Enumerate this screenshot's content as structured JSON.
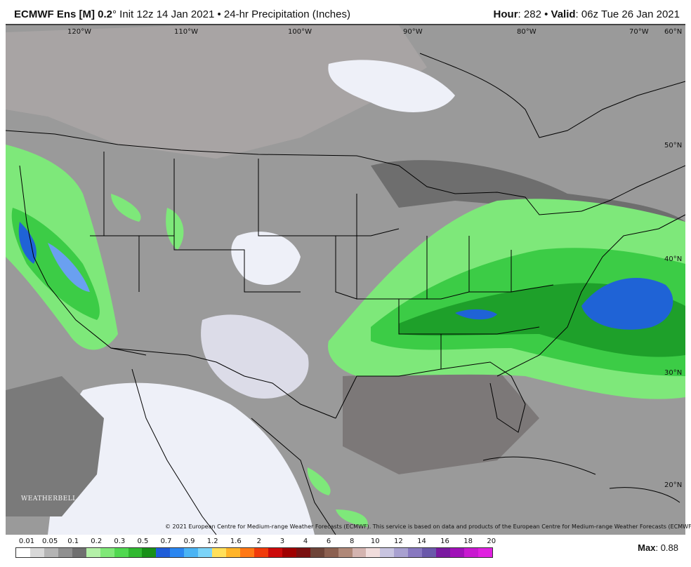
{
  "header": {
    "model": "ECMWF Ens [M] 0.2",
    "degree": "°",
    "init": " Init 12z 14 Jan 2021",
    "separator": " • ",
    "product": "24-hr Precipitation (Inches)",
    "hour_label": "Hour",
    "hour_value": ": 282",
    "valid_label": "Valid",
    "valid_value": ": 06z Tue 26 Jan 2021"
  },
  "map": {
    "longitude_labels": [
      "120°W",
      "110°W",
      "100°W",
      "90°W",
      "80°W",
      "70°W"
    ],
    "latitude_labels": [
      "60°N",
      "50°N",
      "40°N",
      "30°N",
      "20°N"
    ],
    "copyright": "© 2021 European Centre for Medium-range Weather Forecasts (ECMWF). This service is based on data and products of the European Centre for Medium-range Weather Forecasts (ECMWF).",
    "logo_text": "WEATHERBELL"
  },
  "legend": {
    "ticks": [
      "0.01",
      "0.05",
      "0.1",
      "0.2",
      "0.3",
      "0.5",
      "0.7",
      "0.9",
      "1.2",
      "1.6",
      "2",
      "3",
      "4",
      "6",
      "8",
      "10",
      "12",
      "14",
      "16",
      "18",
      "20"
    ],
    "colors": [
      "#ffffff",
      "#d8d8d8",
      "#b4b4b4",
      "#909090",
      "#707070",
      "#b4f0a8",
      "#80e878",
      "#50d850",
      "#30b830",
      "#189018",
      "#1e5cd8",
      "#2a86f0",
      "#4ab4f4",
      "#7cd4f8",
      "#ffe05a",
      "#ffb428",
      "#ff7814",
      "#f03a0a",
      "#cc0a0a",
      "#a00000",
      "#7a1010",
      "#6e4438",
      "#8c6050",
      "#b08878",
      "#d4b4b0",
      "#f0dcdc",
      "#c8c4e0",
      "#a8a0d0",
      "#8878c0",
      "#6a58aa",
      "#7a1aa0",
      "#a010b8",
      "#c818d0",
      "#e020e0"
    ],
    "max_label": "Max",
    "max_value": ": 0.88"
  },
  "colors": {
    "land_gray": "#9a9a9a",
    "light_gray": "#b8b4b4",
    "dark_gray": "#6e6e6e",
    "trace_white": "#eef0f8",
    "green_light": "#7ee87a",
    "green_mid": "#3ccc46",
    "green_dark": "#1ea02a",
    "blue": "#1f63d6",
    "light_blue": "#6aa0f0"
  }
}
